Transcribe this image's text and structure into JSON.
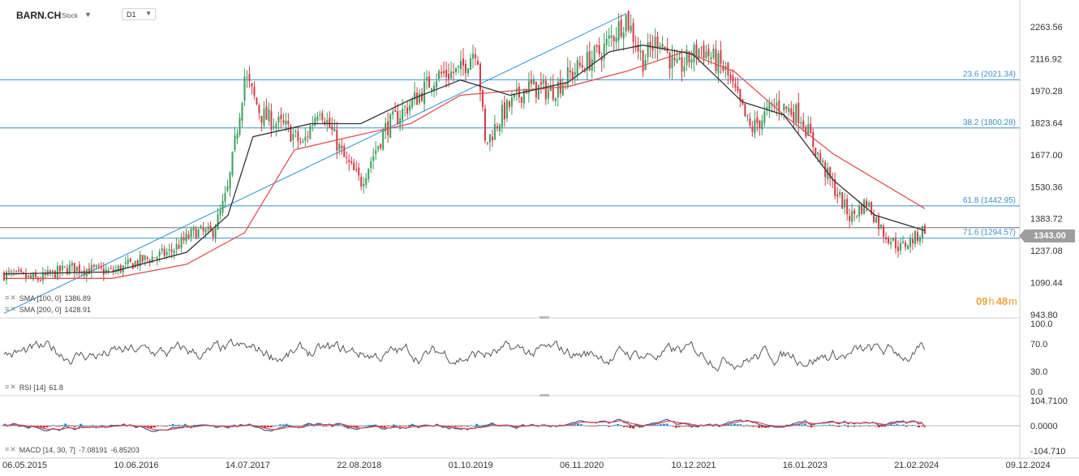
{
  "header": {
    "symbol": "BARN.CH",
    "type_tag": "Stock",
    "timeframe": "D1"
  },
  "legends": {
    "sma100": {
      "label": "SMA [100, 0]",
      "value": "1386.89"
    },
    "sma200": {
      "label": "SMA [200, 0]",
      "value": "1428.91"
    },
    "rsi": {
      "label": "RSI [14]",
      "value": "61.8"
    },
    "macd": {
      "label": "MACD [14, 30, 7]",
      "value1": "-7.08191",
      "value2": "-6.85203"
    }
  },
  "countdown": {
    "hours": "09",
    "hour_unit": "h",
    "minutes": "48",
    "minute_unit": "m"
  },
  "last_price": "1343.00",
  "colors": {
    "up": "#3a9e5c",
    "down": "#d63843",
    "sma100": "#333333",
    "sma200": "#e05252",
    "level": "#3b8ed1",
    "trendline": "#2a8fdc",
    "rsi": "#555555",
    "macd_pos": "#2f8ad8",
    "macd_neg": "#d62828",
    "signal": "#d64b5b"
  },
  "chart_data": [
    {
      "type": "candlestick",
      "title": "BARN.CH",
      "x_labels": [
        "06.05.2015",
        "10.06.2016",
        "14.07.2017",
        "22.08.2018",
        "01.10.2019",
        "06.11.2020",
        "10.12.2021",
        "16.01.2023",
        "21.02.2024",
        "09.12.2024"
      ],
      "y_ticks": [
        "2263.56",
        "2116.92",
        "1970.28",
        "1823.64",
        "1677.00",
        "1530.36",
        "1383.72",
        "1237.08",
        "1090.44",
        "943.80"
      ],
      "ylim": [
        943.8,
        2350
      ],
      "series": [
        {
          "name": "Close",
          "points": [
            [
              "2015-05",
              1130
            ],
            [
              "2015-09",
              1105
            ],
            [
              "2016-01",
              1160
            ],
            [
              "2016-06",
              1140
            ],
            [
              "2016-09",
              1185
            ],
            [
              "2017-01",
              1230
            ],
            [
              "2017-04",
              1325
            ],
            [
              "2017-06",
              1315
            ],
            [
              "2017-07",
              1400
            ],
            [
              "2017-08",
              1520
            ],
            [
              "2017-09",
              1770
            ],
            [
              "2017-10",
              2040
            ],
            [
              "2017-12",
              1860
            ],
            [
              "2018-03",
              1800
            ],
            [
              "2018-05",
              1720
            ],
            [
              "2018-07",
              1905
            ],
            [
              "2018-10",
              1660
            ],
            [
              "2018-12",
              1550
            ],
            [
              "2019-03",
              1800
            ],
            [
              "2019-07",
              1950
            ],
            [
              "2019-09",
              2040
            ],
            [
              "2019-12",
              2060
            ],
            [
              "2020-02",
              2180
            ],
            [
              "2020-03",
              1720
            ],
            [
              "2020-05",
              1860
            ],
            [
              "2020-08",
              1990
            ],
            [
              "2020-11",
              1970
            ],
            [
              "2021-02",
              2070
            ],
            [
              "2021-05",
              2150
            ],
            [
              "2021-08",
              2310
            ],
            [
              "2021-10",
              2110
            ],
            [
              "2021-12",
              2220
            ],
            [
              "2022-02",
              2060
            ],
            [
              "2022-05",
              2170
            ],
            [
              "2022-08",
              2060
            ],
            [
              "2022-11",
              1790
            ],
            [
              "2023-02",
              1910
            ],
            [
              "2023-05",
              1860
            ],
            [
              "2023-08",
              1600
            ],
            [
              "2023-11",
              1390
            ],
            [
              "2024-01",
              1460
            ],
            [
              "2024-03",
              1320
            ],
            [
              "2024-05",
              1250
            ],
            [
              "2024-07",
              1300
            ],
            [
              "2024-08",
              1343
            ]
          ]
        },
        {
          "name": "SMA 100",
          "points": [
            [
              "2015-05",
              1130
            ],
            [
              "2016-06",
              1140
            ],
            [
              "2017-03",
              1230
            ],
            [
              "2017-08",
              1400
            ],
            [
              "2017-11",
              1760
            ],
            [
              "2018-06",
              1820
            ],
            [
              "2018-12",
              1820
            ],
            [
              "2019-06",
              1930
            ],
            [
              "2019-12",
              2020
            ],
            [
              "2020-06",
              1950
            ],
            [
              "2021-01",
              2010
            ],
            [
              "2021-06",
              2150
            ],
            [
              "2021-10",
              2180
            ],
            [
              "2022-04",
              2140
            ],
            [
              "2022-10",
              1920
            ],
            [
              "2023-03",
              1860
            ],
            [
              "2023-09",
              1560
            ],
            [
              "2024-02",
              1400
            ],
            [
              "2024-08",
              1330
            ]
          ]
        },
        {
          "name": "SMA 200",
          "points": [
            [
              "2015-05",
              1110
            ],
            [
              "2016-06",
              1110
            ],
            [
              "2017-03",
              1175
            ],
            [
              "2017-10",
              1320
            ],
            [
              "2018-04",
              1700
            ],
            [
              "2018-12",
              1770
            ],
            [
              "2019-06",
              1820
            ],
            [
              "2019-12",
              1950
            ],
            [
              "2020-06",
              1970
            ],
            [
              "2021-01",
              1990
            ],
            [
              "2021-08",
              2060
            ],
            [
              "2022-03",
              2150
            ],
            [
              "2022-09",
              2060
            ],
            [
              "2023-03",
              1860
            ],
            [
              "2023-09",
              1680
            ],
            [
              "2024-08",
              1430
            ]
          ]
        }
      ],
      "fib_levels": [
        {
          "label": "23.6 (2021.34)",
          "value": 2021.34
        },
        {
          "label": "38.2 (1800.28)",
          "value": 1800.28
        },
        {
          "label": "61.8 (1442.95)",
          "value": 1442.95
        },
        {
          "label": "71.6 (1294.57)",
          "value": 1294.57
        }
      ],
      "horizontal_line": 1343.0,
      "trendline": [
        [
          "2015-05",
          950
        ],
        [
          "2021-08",
          2325
        ]
      ],
      "last_price": 1343.0
    },
    {
      "type": "line",
      "title": "RSI [14]",
      "y_ticks": [
        "100.0",
        "70.0",
        "30.0",
        "0.0"
      ],
      "ylim": [
        0,
        100
      ],
      "series": [
        {
          "name": "RSI",
          "last_value": 61.8
        }
      ]
    },
    {
      "type": "bar+line",
      "title": "MACD [14, 30, 7]",
      "y_ticks": [
        "104.7100",
        "0.0000",
        "-104.710"
      ],
      "ylim": [
        -104.71,
        104.71
      ],
      "series": [
        {
          "name": "MACD",
          "last_value": -7.08191
        },
        {
          "name": "Signal",
          "last_value": -6.85203
        }
      ]
    }
  ]
}
